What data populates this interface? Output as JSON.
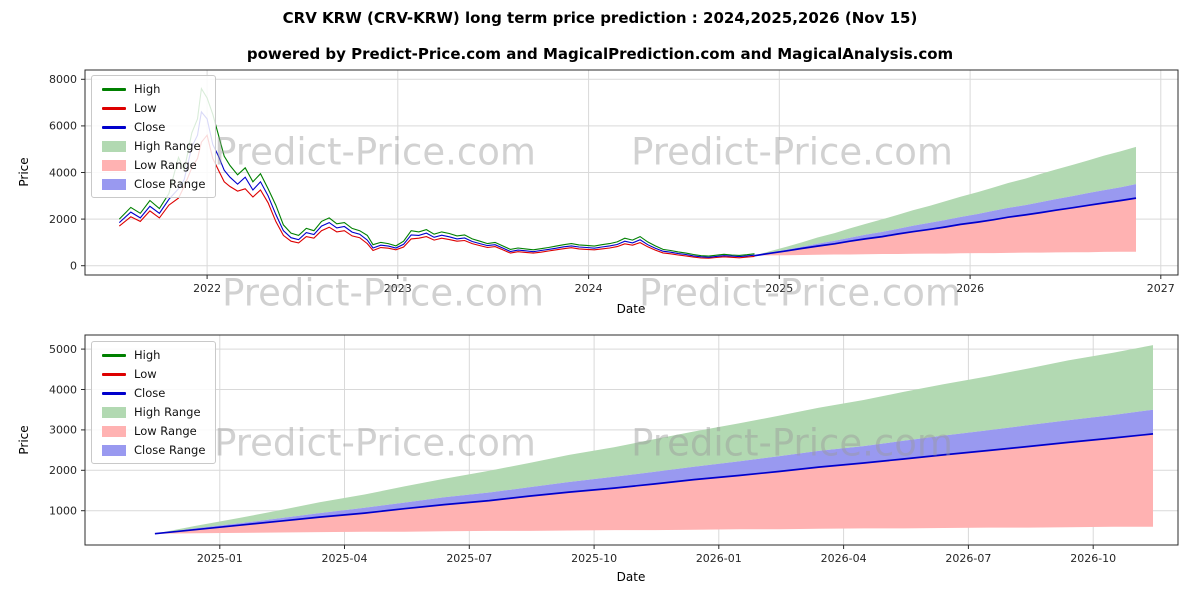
{
  "title": "CRV KRW (CRV-KRW) long term price prediction : 2024,2025,2026 (Nov 15)",
  "subtitle": "powered by Predict-Price.com and MagicalPrediction.com and MagicalAnalysis.com",
  "watermark": "Predict-Price.com",
  "colors": {
    "high": "#008000",
    "low": "#dd0000",
    "close": "#0000cc",
    "high_range": "#b2d9b2",
    "low_range": "#ffb2b2",
    "close_range": "#9999f0",
    "grid": "#d9d9d9",
    "spine": "#2b2b2b",
    "watermark_gray": "#9a9a9a"
  },
  "chart_data": {
    "type": "line",
    "legend": [
      "High",
      "Low",
      "Close",
      "High Range",
      "Low Range",
      "Close Range"
    ],
    "charts": [
      {
        "name": "history-and-forecast",
        "xlabel": "Date",
        "ylabel": "Price",
        "xlim": [
          2021.36,
          2027.09
        ],
        "ylim": [
          -400,
          8400
        ],
        "xticks": [
          2022,
          2023,
          2024,
          2025,
          2026,
          2027
        ],
        "xtick_labels": [
          "2022",
          "2023",
          "2024",
          "2025",
          "2026",
          "2027"
        ],
        "yticks": [
          0,
          2000,
          4000,
          6000,
          8000
        ],
        "ytick_labels": [
          "0",
          "2000",
          "4000",
          "6000",
          "8000"
        ],
        "grid": true,
        "legend_position": "upper left",
        "show_history": true,
        "show_forecast": true
      },
      {
        "name": "forecast-detail",
        "xlabel": "Date",
        "ylabel": "Price",
        "xlim": [
          2024.73,
          2026.92
        ],
        "ylim": [
          150,
          5350
        ],
        "xticks": [
          2025.0,
          2025.25,
          2025.5,
          2025.75,
          2026.0,
          2026.25,
          2026.5,
          2026.75
        ],
        "xtick_labels": [
          "2025-01",
          "2025-04",
          "2025-07",
          "2025-10",
          "2026-01",
          "2026-04",
          "2026-07",
          "2026-10"
        ],
        "yticks": [
          1000,
          2000,
          3000,
          4000,
          5000
        ],
        "ytick_labels": [
          "1000",
          "2000",
          "3000",
          "4000",
          "5000"
        ],
        "grid": true,
        "legend_position": "upper left",
        "show_history": false,
        "show_forecast": true
      }
    ],
    "historical": {
      "x": [
        2021.54,
        2021.6,
        2021.65,
        2021.7,
        2021.75,
        2021.8,
        2021.85,
        2021.88,
        2021.92,
        2021.95,
        2021.97,
        2022.0,
        2022.03,
        2022.06,
        2022.09,
        2022.12,
        2022.16,
        2022.2,
        2022.24,
        2022.28,
        2022.32,
        2022.36,
        2022.4,
        2022.44,
        2022.48,
        2022.52,
        2022.56,
        2022.6,
        2022.64,
        2022.68,
        2022.72,
        2022.76,
        2022.8,
        2022.84,
        2022.87,
        2022.91,
        2022.95,
        2022.99,
        2023.03,
        2023.07,
        2023.11,
        2023.15,
        2023.19,
        2023.23,
        2023.27,
        2023.31,
        2023.35,
        2023.39,
        2023.43,
        2023.47,
        2023.51,
        2023.55,
        2023.59,
        2023.63,
        2023.67,
        2023.71,
        2023.75,
        2023.79,
        2023.83,
        2023.87,
        2023.91,
        2023.95,
        2023.99,
        2024.03,
        2024.07,
        2024.11,
        2024.15,
        2024.19,
        2024.23,
        2024.27,
        2024.31,
        2024.35,
        2024.39,
        2024.43,
        2024.47,
        2024.51,
        2024.55,
        2024.59,
        2024.63,
        2024.67,
        2024.71,
        2024.75,
        2024.79,
        2024.83,
        2024.87
      ],
      "high": [
        2000,
        2500,
        2250,
        2800,
        2450,
        3100,
        4650,
        4100,
        5700,
        6300,
        7600,
        7200,
        6500,
        5600,
        4700,
        4300,
        3900,
        4200,
        3600,
        3950,
        3300,
        2600,
        1750,
        1400,
        1300,
        1600,
        1500,
        1900,
        2050,
        1800,
        1850,
        1600,
        1500,
        1300,
        900,
        1000,
        950,
        850,
        1050,
        1500,
        1450,
        1550,
        1350,
        1450,
        1380,
        1280,
        1320,
        1150,
        1050,
        950,
        1000,
        850,
        700,
        760,
        720,
        680,
        730,
        780,
        840,
        900,
        950,
        890,
        870,
        840,
        900,
        950,
        1020,
        1180,
        1100,
        1250,
        1020,
        850,
        700,
        650,
        590,
        540,
        480,
        430,
        410,
        450,
        490,
        460,
        440,
        470,
        510
      ],
      "low": [
        1700,
        2100,
        1900,
        2350,
        2050,
        2600,
        2900,
        3400,
        4200,
        4600,
        5300,
        5600,
        4600,
        4100,
        3600,
        3400,
        3200,
        3300,
        2950,
        3250,
        2700,
        1900,
        1300,
        1050,
        980,
        1250,
        1180,
        1500,
        1650,
        1450,
        1500,
        1280,
        1200,
        950,
        650,
        780,
        750,
        680,
        800,
        1150,
        1180,
        1250,
        1100,
        1180,
        1120,
        1050,
        1080,
        950,
        860,
        780,
        820,
        680,
        540,
        600,
        570,
        540,
        580,
        630,
        680,
        730,
        770,
        720,
        700,
        680,
        720,
        760,
        820,
        940,
        880,
        990,
        810,
        670,
        550,
        510,
        460,
        420,
        370,
        330,
        320,
        350,
        380,
        360,
        340,
        370,
        400
      ],
      "close": [
        1850,
        2300,
        2050,
        2550,
        2250,
        2850,
        3300,
        3700,
        5100,
        5600,
        6600,
        6300,
        5200,
        4700,
        4100,
        3800,
        3500,
        3800,
        3250,
        3600,
        3000,
        2200,
        1500,
        1200,
        1120,
        1420,
        1340,
        1700,
        1850,
        1620,
        1680,
        1440,
        1350,
        1100,
        760,
        880,
        840,
        760,
        920,
        1320,
        1300,
        1400,
        1220,
        1310,
        1240,
        1150,
        1190,
        1040,
        950,
        860,
        900,
        760,
        610,
        670,
        640,
        600,
        650,
        700,
        750,
        810,
        850,
        800,
        780,
        750,
        800,
        850,
        910,
        1050,
        980,
        1110,
        900,
        750,
        620,
        580,
        520,
        480,
        420,
        380,
        360,
        400,
        430,
        410,
        390,
        420,
        450
      ]
    },
    "forecast": {
      "x": [
        2024.87,
        2024.95,
        2025.04,
        2025.12,
        2025.2,
        2025.29,
        2025.37,
        2025.45,
        2025.54,
        2025.62,
        2025.7,
        2025.79,
        2025.87,
        2025.95,
        2026.04,
        2026.12,
        2026.2,
        2026.29,
        2026.37,
        2026.45,
        2026.54,
        2026.62,
        2026.7,
        2026.79,
        2026.87
      ],
      "high": [
        430,
        620,
        820,
        1010,
        1210,
        1400,
        1600,
        1790,
        1990,
        2180,
        2380,
        2570,
        2770,
        2960,
        3160,
        3350,
        3550,
        3740,
        3940,
        4130,
        4330,
        4520,
        4720,
        4910,
        5100
      ],
      "low": [
        430,
        440,
        450,
        460,
        470,
        480,
        480,
        490,
        500,
        500,
        510,
        520,
        520,
        530,
        540,
        540,
        550,
        560,
        560,
        570,
        580,
        580,
        590,
        600,
        600
      ],
      "close": [
        430,
        530,
        640,
        740,
        840,
        940,
        1050,
        1150,
        1250,
        1360,
        1460,
        1560,
        1660,
        1770,
        1870,
        1970,
        2080,
        2180,
        2280,
        2380,
        2490,
        2590,
        2690,
        2800,
        2900
      ],
      "close_upper": [
        430,
        560,
        690,
        810,
        940,
        1070,
        1200,
        1330,
        1450,
        1580,
        1710,
        1840,
        1960,
        2090,
        2220,
        2350,
        2480,
        2600,
        2730,
        2860,
        2990,
        3120,
        3240,
        3370,
        3500
      ]
    }
  }
}
